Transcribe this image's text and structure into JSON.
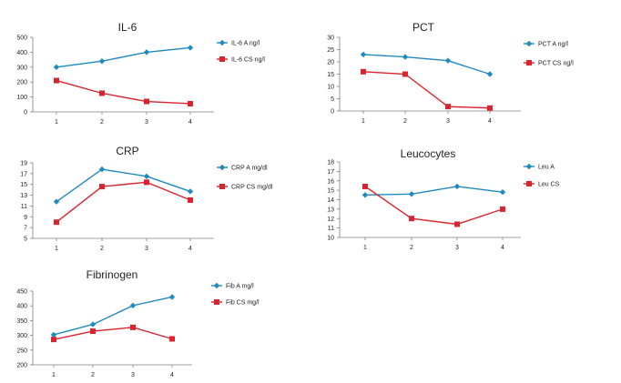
{
  "colors": {
    "seriesA": "#1f8ac0",
    "seriesCS": "#d9232e",
    "axis": "#808080",
    "text": "#222222"
  },
  "chart_data": [
    {
      "type": "line",
      "title": "IL-6",
      "categories": [
        "1",
        "2",
        "3",
        "4"
      ],
      "ylim": [
        0,
        500
      ],
      "yticks": [
        0,
        100,
        200,
        300,
        400,
        500
      ],
      "series": [
        {
          "name": "IL-6 A ng/l",
          "values": [
            300,
            340,
            400,
            430
          ]
        },
        {
          "name": "IL-6 CS ng/l",
          "values": [
            210,
            125,
            70,
            55
          ]
        }
      ]
    },
    {
      "type": "line",
      "title": "PCT",
      "categories": [
        "1",
        "2",
        "3",
        "4"
      ],
      "ylim": [
        0,
        30
      ],
      "yticks": [
        0,
        5,
        10,
        15,
        20,
        25,
        30
      ],
      "series": [
        {
          "name": "PCT A ng/l",
          "values": [
            23,
            22,
            20.5,
            15
          ]
        },
        {
          "name": "PCT CS ng/l",
          "values": [
            16,
            15,
            1.8,
            1.2
          ]
        }
      ]
    },
    {
      "type": "line",
      "title": "CRP",
      "categories": [
        "1",
        "2",
        "3",
        "4"
      ],
      "ylim": [
        5,
        19
      ],
      "yticks": [
        5,
        7,
        9,
        11,
        13,
        15,
        17,
        19
      ],
      "series": [
        {
          "name": "CRP A mg/dl",
          "values": [
            11.8,
            17.8,
            16.5,
            13.7
          ]
        },
        {
          "name": "CRP CS mg/dl",
          "values": [
            8,
            14.6,
            15.4,
            12.1
          ]
        }
      ]
    },
    {
      "type": "line",
      "title": "Leucocytes",
      "categories": [
        "1",
        "2",
        "3",
        "4"
      ],
      "ylim": [
        10,
        18
      ],
      "yticks": [
        10,
        11,
        12,
        13,
        14,
        15,
        16,
        17,
        18
      ],
      "series": [
        {
          "name": "Leu A",
          "values": [
            14.5,
            14.6,
            15.4,
            14.8
          ]
        },
        {
          "name": "Leu CS",
          "values": [
            15.4,
            12,
            11.4,
            13
          ]
        }
      ]
    },
    {
      "type": "line",
      "title": "Fibrinogen",
      "categories": [
        "1",
        "2",
        "3",
        "4"
      ],
      "ylim": [
        200,
        450
      ],
      "yticks": [
        200,
        250,
        300,
        350,
        400,
        450
      ],
      "series": [
        {
          "name": "Fib A mg/l",
          "values": [
            302,
            337,
            401,
            430
          ]
        },
        {
          "name": "Fib CS mg/l",
          "values": [
            286,
            314,
            327,
            288
          ]
        }
      ]
    }
  ]
}
